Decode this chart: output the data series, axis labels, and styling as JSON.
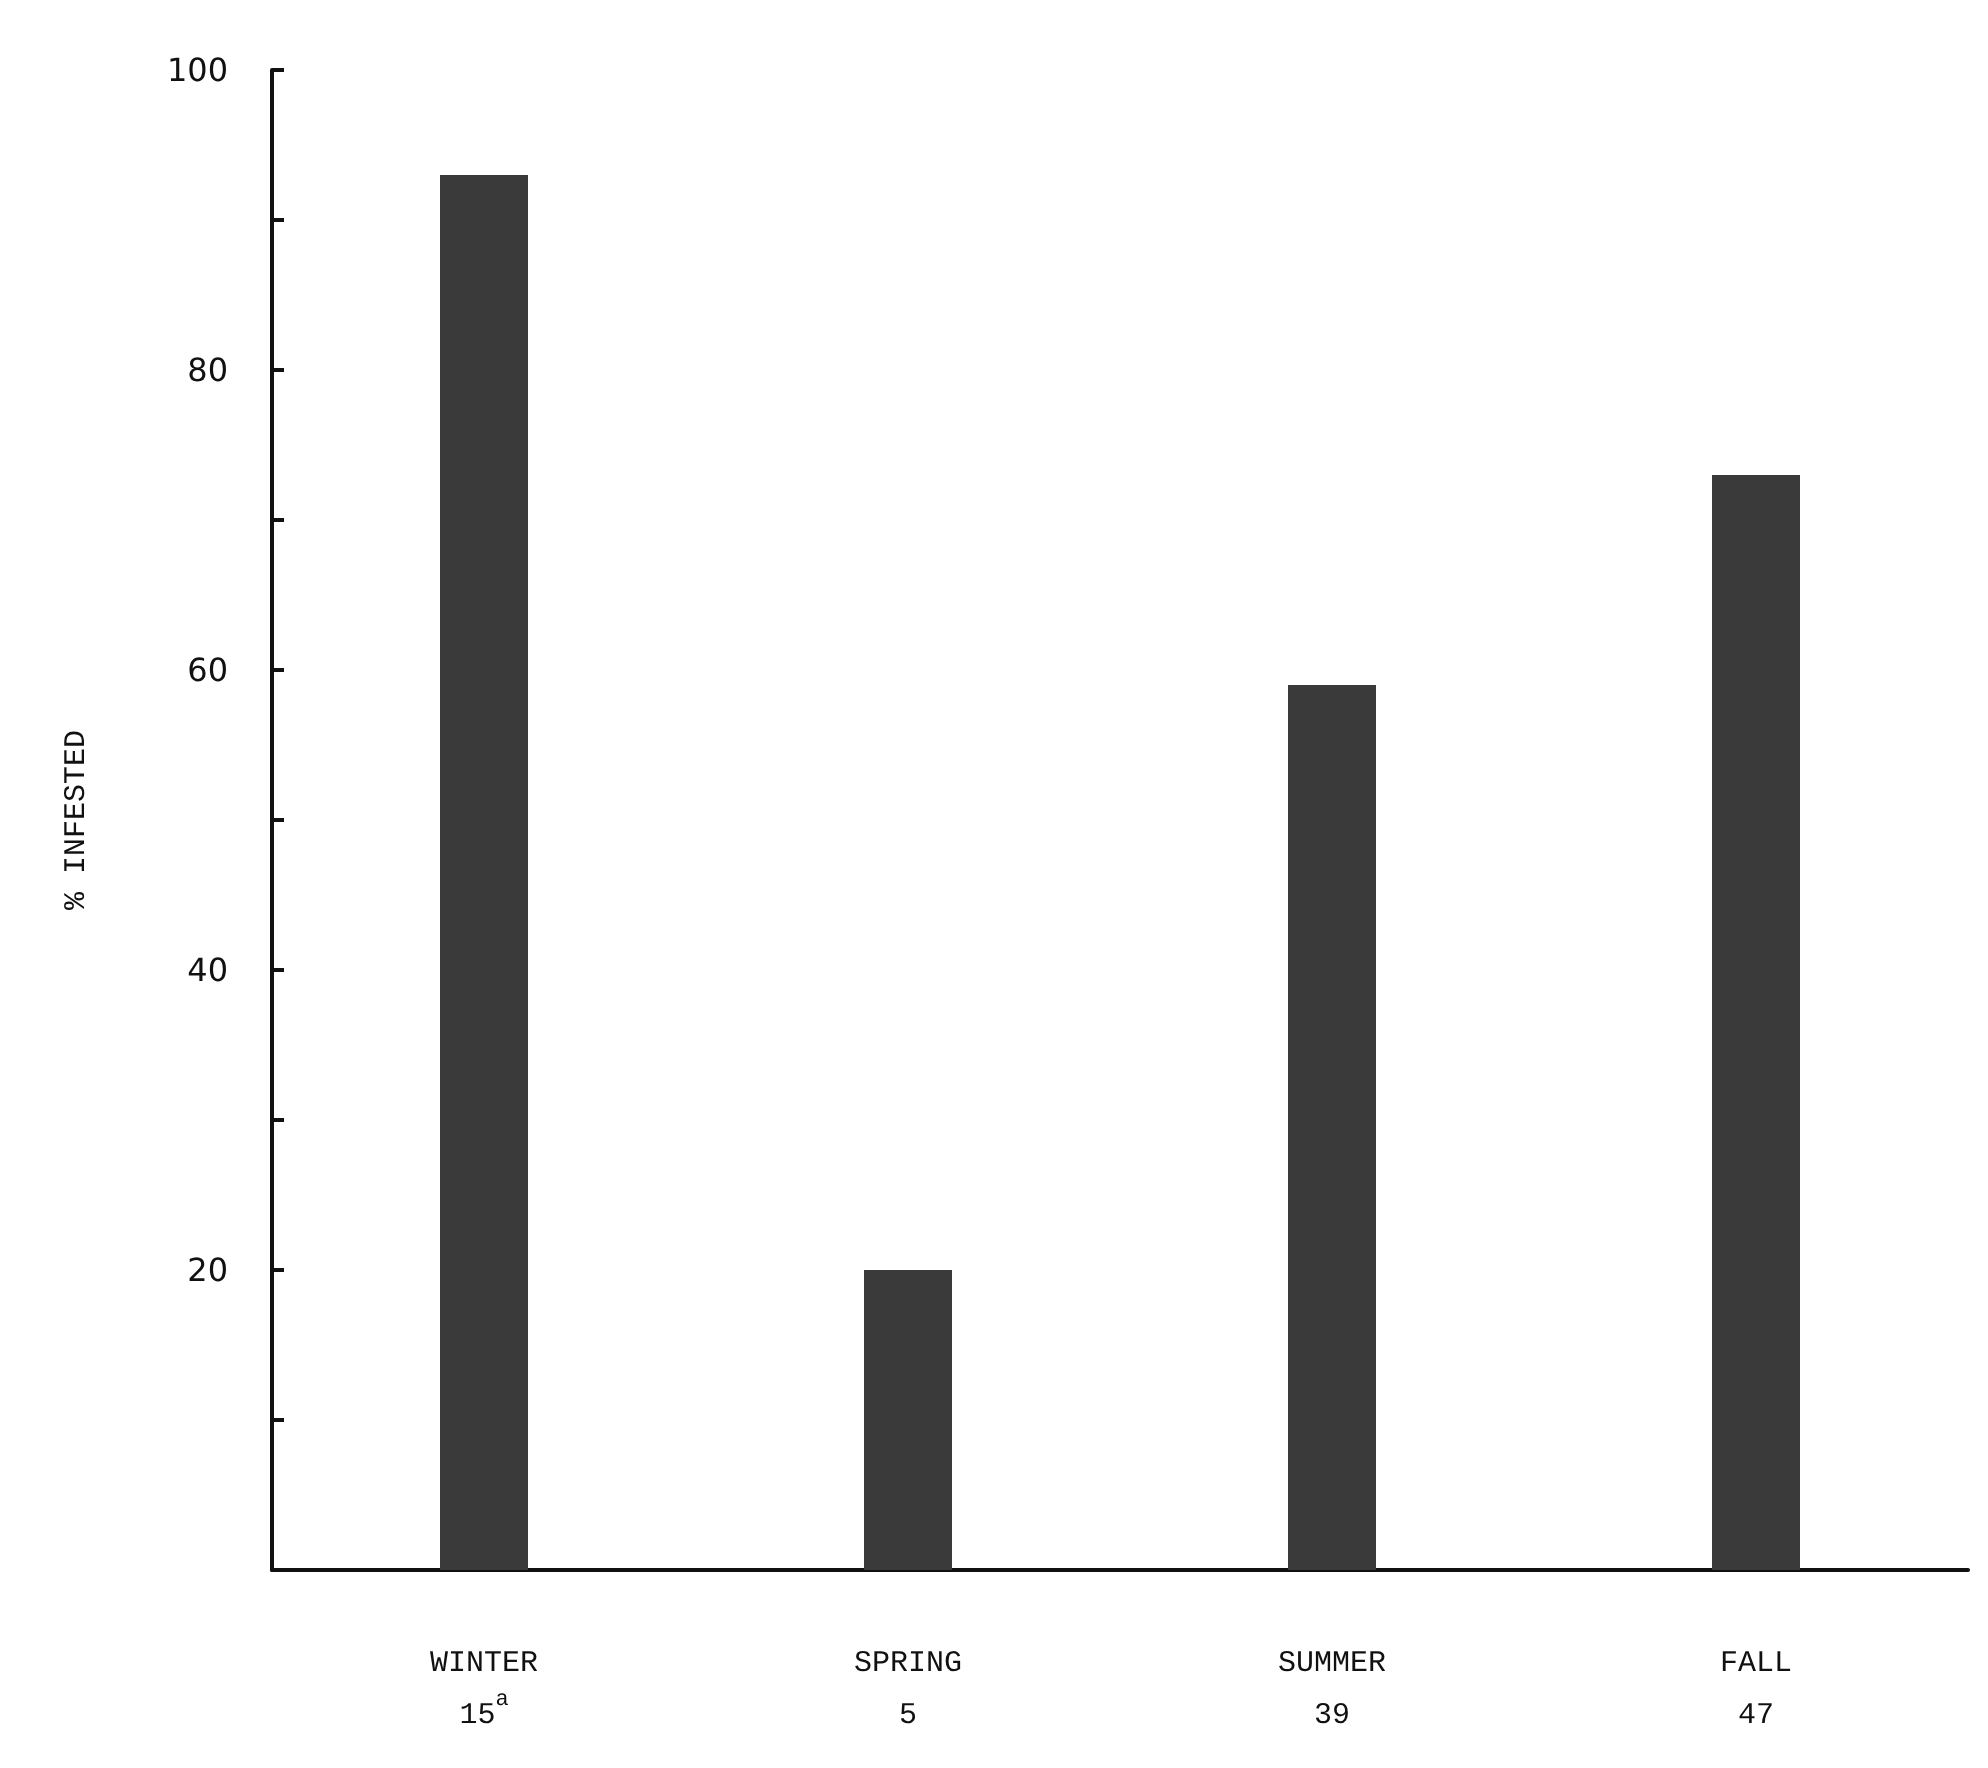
{
  "chart_data": {
    "type": "bar",
    "ylabel": "% INFESTED",
    "categories": [
      "WINTER\n15$^{a}$",
      "SPRING\n5",
      "SUMMER\n39",
      "FALL\n47"
    ],
    "values": [
      93,
      20,
      59,
      73
    ],
    "color": "#3a3a3a",
    "ylim": [
      0,
      100
    ],
    "yticks": [
      {
        "value": 10,
        "label": null
      },
      20,
      {
        "value": 30,
        "label": null
      },
      40,
      {
        "value": 50,
        "label": null
      },
      60,
      {
        "value": 70,
        "label": null
      },
      80,
      {
        "value": 90,
        "label": null
      },
      100
    ],
    "grid": false
  }
}
